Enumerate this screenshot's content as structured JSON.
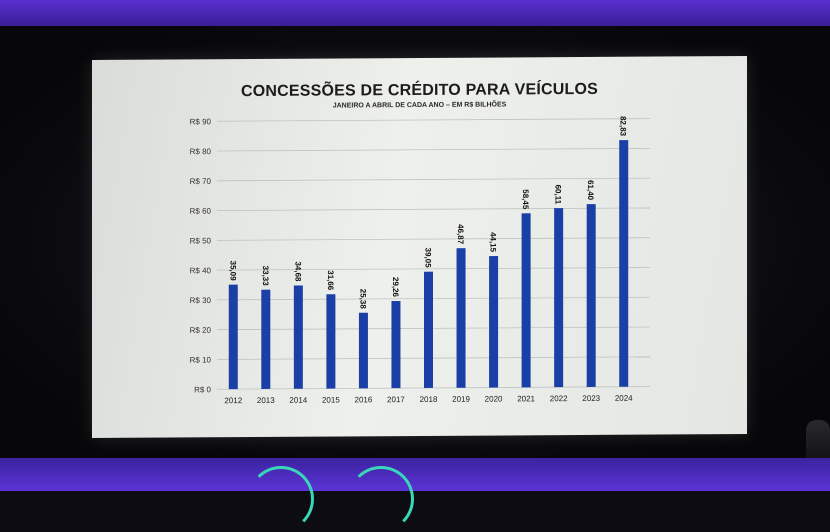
{
  "chart_data": {
    "type": "bar",
    "title": "CONCESSÕES DE CRÉDITO PARA VEÍCULOS",
    "subtitle": "JANEIRO A ABRIL DE CADA ANO – EM R$ BILHÕES",
    "xlabel": "",
    "ylabel": "",
    "categories": [
      "2012",
      "2013",
      "2014",
      "2015",
      "2016",
      "2017",
      "2018",
      "2019",
      "2020",
      "2021",
      "2022",
      "2023",
      "2024"
    ],
    "values": [
      35.09,
      33.33,
      34.68,
      31.66,
      25.38,
      29.26,
      39.05,
      46.87,
      44.15,
      58.45,
      60.11,
      61.4,
      82.83
    ],
    "data_labels": [
      "35,09",
      "33,33",
      "34,68",
      "31,66",
      "25,38",
      "29,26",
      "39,05",
      "46,87",
      "44,15",
      "58,45",
      "60,11",
      "61,40",
      "82,83"
    ],
    "ylim": [
      0,
      90
    ],
    "y_ticks": [
      0,
      10,
      20,
      30,
      40,
      50,
      60,
      70,
      80,
      90
    ],
    "y_tick_labels": [
      "R$ 0",
      "R$ 10",
      "R$ 20",
      "R$ 30",
      "R$ 40",
      "R$ 50",
      "R$ 60",
      "R$ 70",
      "R$ 80",
      "R$ 90"
    ],
    "grid": true,
    "bar_color": "#1a3fa6"
  }
}
